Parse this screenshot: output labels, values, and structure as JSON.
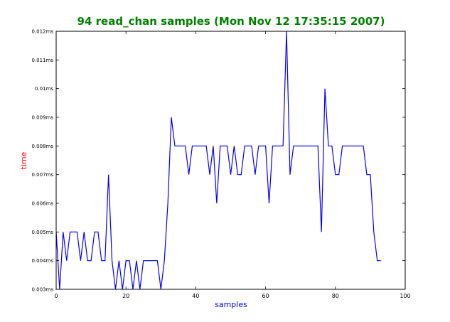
{
  "chart_data": {
    "type": "line",
    "title": "94 read_chan samples (Mon Nov 12 17:35:15 2007)",
    "xlabel": "samples",
    "ylabel": "time",
    "xlim": [
      0,
      100
    ],
    "ylim": [
      0.003,
      0.012
    ],
    "x_ticks": [
      0,
      20,
      40,
      60,
      80,
      100
    ],
    "x_tick_labels": [
      "0",
      "20",
      "40",
      "60",
      "80",
      "100"
    ],
    "y_ticks": [
      0.003,
      0.004,
      0.005,
      0.006,
      0.007,
      0.008,
      0.009,
      0.01,
      0.011,
      0.012
    ],
    "y_tick_labels": [
      "0.003ms",
      "0.004ms",
      "0.005ms",
      "0.006ms",
      "0.007ms",
      "0.008ms",
      "0.009ms",
      "0.01ms",
      "0.011ms",
      "0.012ms"
    ],
    "grid": false,
    "series": [
      {
        "color": "#0000ff",
        "x": [
          0,
          1,
          2,
          3,
          4,
          5,
          6,
          7,
          8,
          9,
          10,
          11,
          12,
          13,
          14,
          15,
          16,
          17,
          18,
          19,
          20,
          21,
          22,
          23,
          24,
          25,
          26,
          27,
          28,
          29,
          30,
          31,
          32,
          33,
          34,
          35,
          36,
          37,
          38,
          39,
          40,
          41,
          42,
          43,
          44,
          45,
          46,
          47,
          48,
          49,
          50,
          51,
          52,
          53,
          54,
          55,
          56,
          57,
          58,
          59,
          60,
          61,
          62,
          63,
          64,
          65,
          66,
          67,
          68,
          69,
          70,
          71,
          72,
          73,
          74,
          75,
          76,
          77,
          78,
          79,
          80,
          81,
          82,
          83,
          84,
          85,
          86,
          87,
          88,
          89,
          90,
          91,
          92,
          93
        ],
        "values": [
          0.005,
          0.003,
          0.005,
          0.004,
          0.005,
          0.005,
          0.005,
          0.004,
          0.005,
          0.004,
          0.004,
          0.005,
          0.005,
          0.004,
          0.004,
          0.007,
          0.004,
          0.003,
          0.004,
          0.003,
          0.004,
          0.004,
          0.003,
          0.004,
          0.003,
          0.004,
          0.004,
          0.004,
          0.004,
          0.004,
          0.003,
          0.004,
          0.006,
          0.009,
          0.008,
          0.008,
          0.008,
          0.008,
          0.007,
          0.008,
          0.008,
          0.008,
          0.008,
          0.008,
          0.007,
          0.008,
          0.006,
          0.008,
          0.008,
          0.008,
          0.007,
          0.008,
          0.007,
          0.007,
          0.008,
          0.008,
          0.008,
          0.007,
          0.008,
          0.008,
          0.008,
          0.006,
          0.008,
          0.008,
          0.008,
          0.008,
          0.012,
          0.007,
          0.008,
          0.008,
          0.008,
          0.008,
          0.008,
          0.008,
          0.008,
          0.008,
          0.005,
          0.01,
          0.008,
          0.008,
          0.007,
          0.007,
          0.008,
          0.008,
          0.008,
          0.008,
          0.008,
          0.008,
          0.008,
          0.007,
          0.007,
          0.005,
          0.004,
          0.004
        ]
      }
    ],
    "colors": {
      "title": "#008000",
      "xlabel": "#0000ff",
      "ylabel": "#ff0000",
      "line": "#0000ff"
    }
  }
}
